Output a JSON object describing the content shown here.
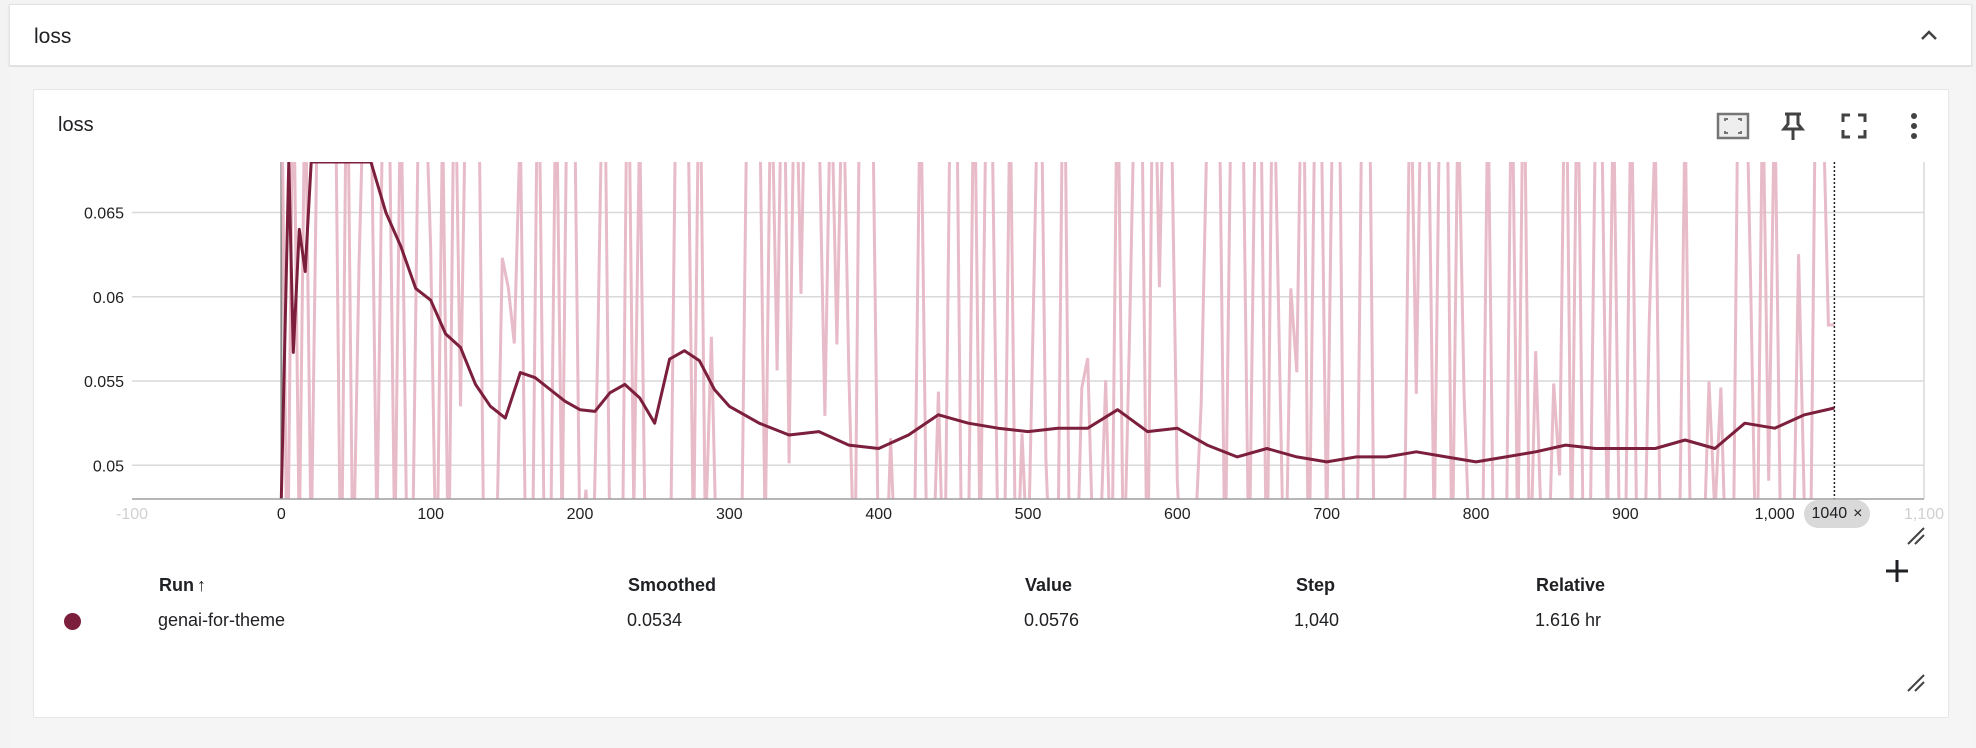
{
  "group": {
    "title": "loss"
  },
  "card": {
    "title": "loss"
  },
  "icons": {
    "collapse": "chevron-up-icon",
    "fit": "fit-domain-icon",
    "pin": "pin-icon",
    "fullscreen": "fullscreen-icon",
    "more": "more-vert-icon",
    "add": "plus-icon",
    "resize": "resize-handle-icon"
  },
  "colors": {
    "run": "#7b1f3c",
    "raw": "#e7b7c6",
    "grid": "#d9d9d9",
    "axis": "#9e9e9e"
  },
  "step_marker": {
    "label": "1040",
    "close": "×"
  },
  "table": {
    "headers": {
      "run": "Run",
      "sort": "↑",
      "smoothed": "Smoothed",
      "value": "Value",
      "step": "Step",
      "relative": "Relative"
    },
    "rows": [
      {
        "run": "genai-for-theme",
        "smoothed": "0.0534",
        "value": "0.0576",
        "step": "1,040",
        "relative": "1.616 hr"
      }
    ]
  },
  "chart_data": {
    "type": "line",
    "title": "loss",
    "xlabel": "",
    "ylabel": "",
    "xlim": [
      -100,
      1100
    ],
    "ylim": [
      0.048,
      0.068
    ],
    "x_ticks": [
      {
        "value": -100,
        "label": "-100"
      },
      {
        "value": 0,
        "label": "0"
      },
      {
        "value": 100,
        "label": "100"
      },
      {
        "value": 200,
        "label": "200"
      },
      {
        "value": 300,
        "label": "300"
      },
      {
        "value": 400,
        "label": "400"
      },
      {
        "value": 500,
        "label": "500"
      },
      {
        "value": 600,
        "label": "600"
      },
      {
        "value": 700,
        "label": "700"
      },
      {
        "value": 800,
        "label": "800"
      },
      {
        "value": 900,
        "label": "900"
      },
      {
        "value": 1000,
        "label": "1,000"
      },
      {
        "value": 1100,
        "label": "1,100"
      }
    ],
    "y_ticks": [
      {
        "value": 0.05,
        "label": "0.05"
      },
      {
        "value": 0.055,
        "label": "0.055"
      },
      {
        "value": 0.06,
        "label": "0.06"
      },
      {
        "value": 0.065,
        "label": "0.065"
      }
    ],
    "grid": true,
    "series": [
      {
        "name": "genai-for-theme",
        "x": [
          0,
          5,
          8,
          12,
          16,
          20,
          60,
          70,
          80,
          90,
          100,
          110,
          120,
          130,
          140,
          150,
          160,
          170,
          180,
          190,
          200,
          210,
          220,
          230,
          240,
          250,
          260,
          270,
          280,
          290,
          300,
          320,
          340,
          360,
          380,
          400,
          420,
          440,
          460,
          480,
          500,
          520,
          540,
          560,
          580,
          600,
          620,
          640,
          660,
          680,
          700,
          720,
          740,
          760,
          780,
          800,
          820,
          840,
          860,
          880,
          900,
          920,
          940,
          960,
          980,
          1000,
          1020,
          1040
        ],
        "values": [
          0.048,
          0.068,
          0.0567,
          0.064,
          0.0615,
          0.068,
          0.068,
          0.065,
          0.063,
          0.0605,
          0.0598,
          0.0578,
          0.057,
          0.0548,
          0.0535,
          0.0528,
          0.0555,
          0.0552,
          0.0545,
          0.0538,
          0.0533,
          0.0532,
          0.0543,
          0.0548,
          0.054,
          0.0525,
          0.0563,
          0.0568,
          0.0562,
          0.0545,
          0.0535,
          0.0525,
          0.0518,
          0.052,
          0.0512,
          0.051,
          0.0518,
          0.053,
          0.0525,
          0.0522,
          0.052,
          0.0522,
          0.0522,
          0.0533,
          0.052,
          0.0522,
          0.0512,
          0.0505,
          0.051,
          0.0505,
          0.0502,
          0.0505,
          0.0505,
          0.0508,
          0.0505,
          0.0502,
          0.0505,
          0.0508,
          0.0512,
          0.051,
          0.051,
          0.051,
          0.0515,
          0.051,
          0.0525,
          0.0522,
          0.053,
          0.0534
        ]
      }
    ]
  }
}
